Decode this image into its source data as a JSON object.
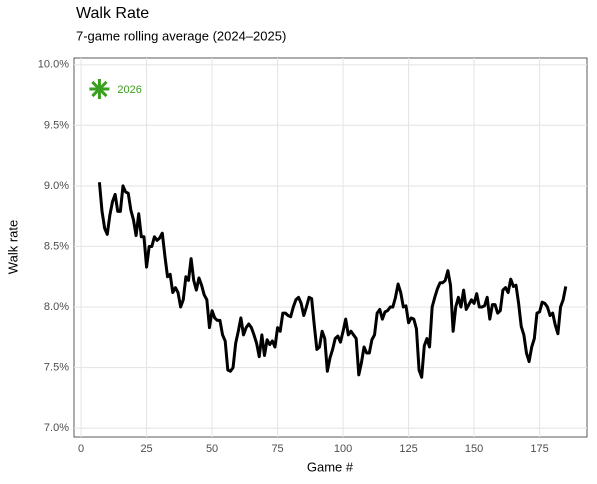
{
  "chart_data": {
    "type": "line",
    "title": "Walk Rate",
    "subtitle": "7-game rolling average (2024–2025)",
    "xlabel": "Game #",
    "ylabel": "Walk rate",
    "x": [
      7,
      8,
      9,
      10,
      11,
      12,
      13,
      14,
      15,
      16,
      17,
      18,
      19,
      20,
      21,
      22,
      23,
      24,
      25,
      26,
      27,
      28,
      29,
      30,
      31,
      32,
      33,
      34,
      35,
      36,
      37,
      38,
      39,
      40,
      41,
      42,
      43,
      44,
      45,
      46,
      47,
      48,
      49,
      50,
      51,
      52,
      53,
      54,
      55,
      56,
      57,
      58,
      59,
      60,
      61,
      62,
      63,
      64,
      65,
      66,
      67,
      68,
      69,
      70,
      71,
      72,
      73,
      74,
      75,
      76,
      77,
      78,
      79,
      80,
      81,
      82,
      83,
      84,
      85,
      86,
      87,
      88,
      89,
      90,
      91,
      92,
      93,
      94,
      95,
      96,
      97,
      98,
      99,
      100,
      101,
      102,
      103,
      104,
      105,
      106,
      107,
      108,
      109,
      110,
      111,
      112,
      113,
      114,
      115,
      116,
      117,
      118,
      119,
      120,
      121,
      122,
      123,
      124,
      125,
      126,
      127,
      128,
      129,
      130,
      131,
      132,
      133,
      134,
      135,
      136,
      137,
      138,
      139,
      140,
      141,
      142,
      143,
      144,
      145,
      146,
      147,
      148,
      149,
      150,
      151,
      152,
      153,
      154,
      155,
      156,
      157,
      158,
      159,
      160,
      161,
      162,
      163,
      164,
      165,
      166,
      167,
      168,
      169,
      170,
      171,
      172,
      173,
      174,
      175,
      176,
      177,
      178,
      179,
      180,
      181,
      182,
      183,
      184,
      185
    ],
    "series": [
      {
        "name": "Walk rate",
        "color": "#000000",
        "values": [
          9.03,
          8.79,
          8.65,
          8.6,
          8.76,
          8.87,
          8.93,
          8.79,
          8.79,
          9.0,
          8.95,
          8.94,
          8.8,
          8.72,
          8.59,
          8.77,
          8.58,
          8.58,
          8.33,
          8.5,
          8.5,
          8.58,
          8.55,
          8.57,
          8.61,
          8.42,
          8.25,
          8.27,
          8.12,
          8.16,
          8.12,
          8.0,
          8.06,
          8.25,
          8.22,
          8.4,
          8.22,
          8.14,
          8.24,
          8.18,
          8.1,
          8.06,
          7.83,
          7.97,
          7.91,
          7.89,
          7.89,
          7.77,
          7.72,
          7.48,
          7.47,
          7.5,
          7.7,
          7.8,
          7.91,
          7.77,
          7.83,
          7.86,
          7.83,
          7.77,
          7.7,
          7.59,
          7.77,
          7.6,
          7.73,
          7.69,
          7.72,
          7.67,
          7.83,
          7.8,
          7.95,
          7.95,
          7.93,
          7.92,
          8.0,
          8.06,
          8.08,
          8.03,
          7.93,
          8.0,
          8.08,
          8.07,
          7.85,
          7.65,
          7.67,
          7.8,
          7.74,
          7.47,
          7.58,
          7.65,
          7.74,
          7.76,
          7.71,
          7.8,
          7.9,
          7.77,
          7.8,
          7.77,
          7.74,
          7.44,
          7.54,
          7.67,
          7.62,
          7.62,
          7.73,
          7.77,
          7.95,
          7.98,
          7.9,
          7.96,
          7.97,
          8.0,
          8.0,
          8.08,
          8.19,
          8.12,
          8.0,
          8.01,
          7.87,
          7.91,
          7.9,
          7.82,
          7.48,
          7.42,
          7.68,
          7.74,
          7.67,
          8.0,
          8.08,
          8.15,
          8.2,
          8.2,
          8.22,
          8.3,
          8.18,
          7.8,
          8.0,
          8.08,
          8.0,
          8.14,
          7.98,
          8.02,
          8.06,
          8.03,
          8.11,
          8.0,
          8.0,
          8.01,
          8.08,
          7.9,
          8.02,
          8.02,
          7.95,
          7.97,
          8.14,
          8.16,
          8.12,
          8.23,
          8.17,
          8.18,
          8.03,
          7.84,
          7.77,
          7.62,
          7.55,
          7.67,
          7.74,
          7.95,
          7.96,
          8.04,
          8.03,
          8.0,
          7.93,
          7.95,
          7.85,
          7.78,
          8.0,
          8.06,
          8.17
        ]
      }
    ],
    "annotations": [
      {
        "label": "2026",
        "x": 7,
        "y": 9.8,
        "color": "#3a9e1e"
      }
    ],
    "xlim": [
      -2.7,
      193.1
    ],
    "xticks": [
      0,
      25,
      50,
      75,
      100,
      125,
      150,
      175
    ],
    "ylim": [
      6.927,
      10.056
    ],
    "yticks": [
      {
        "value": 7.0,
        "label": "7.0%"
      },
      {
        "value": 7.5,
        "label": "7.5%"
      },
      {
        "value": 8.0,
        "label": "8.0%"
      },
      {
        "value": 8.5,
        "label": "8.5%"
      },
      {
        "value": 9.0,
        "label": "9.0%"
      },
      {
        "value": 9.5,
        "label": "9.5%"
      },
      {
        "value": 10.0,
        "label": "10.0%"
      }
    ],
    "grid": true
  }
}
